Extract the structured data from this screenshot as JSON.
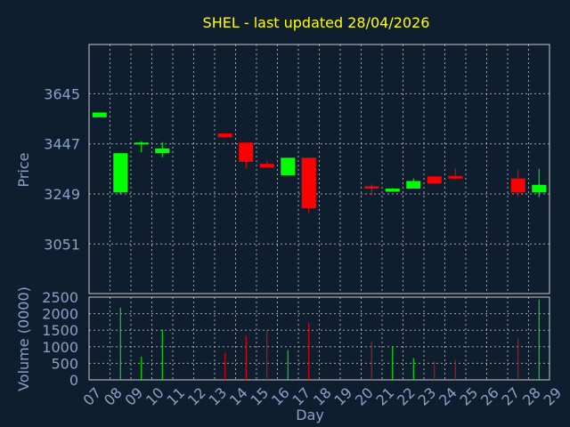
{
  "chart_data": {
    "type": "candlestick",
    "title": "SHEL - last updated 28/04/2026",
    "ylabel_price": "Price",
    "ylabel_volume": "Volume (0000)",
    "xlabel": "Day",
    "x_ticks": [
      "07",
      "08",
      "09",
      "10",
      "11",
      "12",
      "13",
      "14",
      "15",
      "16",
      "17",
      "18",
      "19",
      "20",
      "21",
      "22",
      "23",
      "24",
      "25",
      "26",
      "27",
      "28",
      "29"
    ],
    "price_ticks": [
      3051,
      3249,
      3447,
      3645
    ],
    "price_range": [
      2855,
      3840
    ],
    "volume_ticks": [
      0,
      500,
      1000,
      1500,
      2000,
      2500
    ],
    "volume_range": [
      0,
      2500
    ],
    "colors": {
      "background": "#0f1e2e",
      "grid": "#c8c8c8",
      "axis_text": "#8aa2c8",
      "title": "#ffff00",
      "up": "#00ff00",
      "down": "#ff0000"
    },
    "candles": [
      {
        "day": "07",
        "open": 3552,
        "close": 3571,
        "high": 3571,
        "low": 3552
      },
      {
        "day": "08",
        "open": 3255,
        "close": 3410,
        "high": 3410,
        "low": 3246
      },
      {
        "day": "09",
        "open": 3447,
        "close": 3452,
        "high": 3458,
        "low": 3414
      },
      {
        "day": "10",
        "open": 3410,
        "close": 3429,
        "high": 3454,
        "low": 3394
      },
      {
        "day": "13",
        "open": 3488,
        "close": 3473,
        "high": 3490,
        "low": 3471
      },
      {
        "day": "14",
        "open": 3452,
        "close": 3376,
        "high": 3452,
        "low": 3350
      },
      {
        "day": "15",
        "open": 3368,
        "close": 3353,
        "high": 3380,
        "low": 3353
      },
      {
        "day": "16",
        "open": 3323,
        "close": 3392,
        "high": 3392,
        "low": 3323
      },
      {
        "day": "17",
        "open": 3392,
        "close": 3192,
        "high": 3392,
        "low": 3174
      },
      {
        "day": "20",
        "open": 3279,
        "close": 3270,
        "high": 3287,
        "low": 3244
      },
      {
        "day": "21",
        "open": 3258,
        "close": 3270,
        "high": 3272,
        "low": 3258
      },
      {
        "day": "22",
        "open": 3270,
        "close": 3300,
        "high": 3310,
        "low": 3270
      },
      {
        "day": "23",
        "open": 3318,
        "close": 3290,
        "high": 3318,
        "low": 3288
      },
      {
        "day": "24",
        "open": 3320,
        "close": 3310,
        "high": 3350,
        "low": 3305
      },
      {
        "day": "27",
        "open": 3310,
        "close": 3255,
        "high": 3345,
        "low": 3237
      },
      {
        "day": "28",
        "open": 3255,
        "close": 3285,
        "high": 3348,
        "low": 3236
      }
    ],
    "volumes": [
      {
        "day": "08",
        "value": 2180,
        "dir": "up"
      },
      {
        "day": "09",
        "value": 700,
        "dir": "up"
      },
      {
        "day": "10",
        "value": 1520,
        "dir": "up"
      },
      {
        "day": "13",
        "value": 820,
        "dir": "down"
      },
      {
        "day": "14",
        "value": 1340,
        "dir": "down"
      },
      {
        "day": "15",
        "value": 1510,
        "dir": "down"
      },
      {
        "day": "16",
        "value": 900,
        "dir": "up"
      },
      {
        "day": "17",
        "value": 1720,
        "dir": "down"
      },
      {
        "day": "20",
        "value": 1150,
        "dir": "down"
      },
      {
        "day": "21",
        "value": 1000,
        "dir": "up"
      },
      {
        "day": "22",
        "value": 660,
        "dir": "up"
      },
      {
        "day": "23",
        "value": 560,
        "dir": "down"
      },
      {
        "day": "24",
        "value": 600,
        "dir": "down"
      },
      {
        "day": "27",
        "value": 1250,
        "dir": "down"
      },
      {
        "day": "28",
        "value": 2430,
        "dir": "up"
      }
    ]
  }
}
